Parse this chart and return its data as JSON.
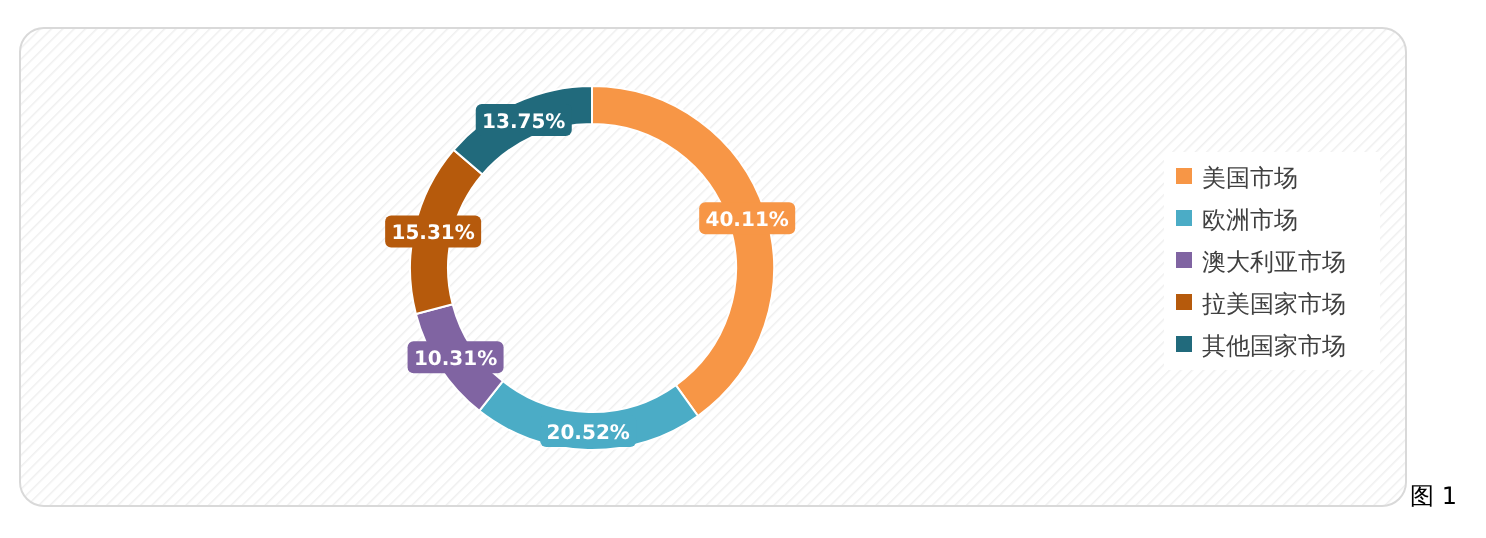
{
  "chart_data": {
    "type": "donut",
    "categories": [
      "美国市场",
      "欧洲市场",
      "澳大利亚市场",
      "拉美国家市场",
      "其他国家市场"
    ],
    "values": [
      40.11,
      20.52,
      10.31,
      15.31,
      13.75
    ],
    "colors": [
      "#f79646",
      "#4bacc6",
      "#8064a2",
      "#b65a0c",
      "#216a7c"
    ],
    "value_labels": [
      "40.11%",
      "20.52%",
      "10.31%",
      "15.31%",
      "13.75%"
    ],
    "legend": "right",
    "annotations": [
      "图 1"
    ]
  }
}
